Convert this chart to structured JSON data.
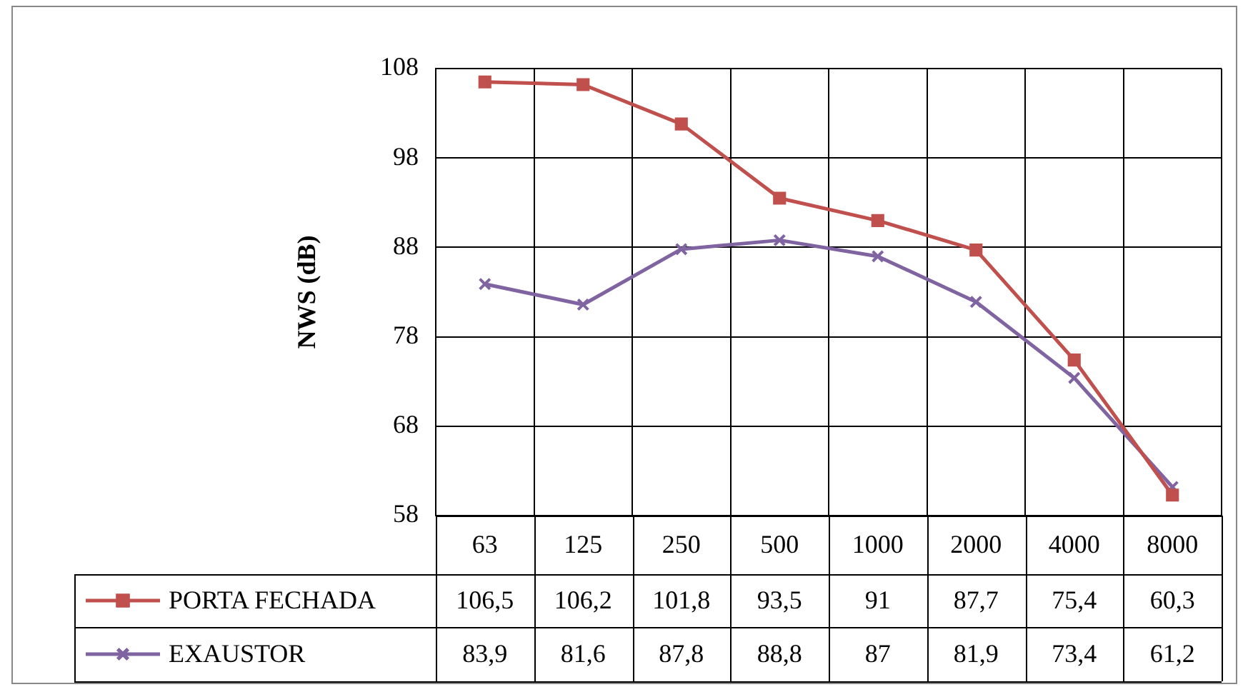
{
  "chart_data": {
    "type": "line",
    "ylabel": "NWS (dB)",
    "categories": [
      "63",
      "125",
      "250",
      "500",
      "1000",
      "2000",
      "4000",
      "8000"
    ],
    "series": [
      {
        "name": "PORTA FECHADA",
        "color": "#c0504d",
        "marker": "square",
        "values": [
          106.5,
          106.2,
          101.8,
          93.5,
          91,
          87.7,
          75.4,
          60.3
        ],
        "value_labels": [
          "106,5",
          "106,2",
          "101,8",
          "93,5",
          "91",
          "87,7",
          "75,4",
          "60,3"
        ]
      },
      {
        "name": "EXAUSTOR",
        "color": "#8064a2",
        "marker": "cross",
        "values": [
          83.9,
          81.6,
          87.8,
          88.8,
          87,
          81.9,
          73.4,
          61.2
        ],
        "value_labels": [
          "83,9",
          "81,6",
          "87,8",
          "88,8",
          "87",
          "81,9",
          "73,4",
          "61,2"
        ]
      }
    ],
    "ylim": [
      58,
      108
    ],
    "yticks": [
      58,
      68,
      78,
      88,
      98,
      108
    ],
    "grid": true,
    "legend": "bottom",
    "line_style": "solid"
  }
}
